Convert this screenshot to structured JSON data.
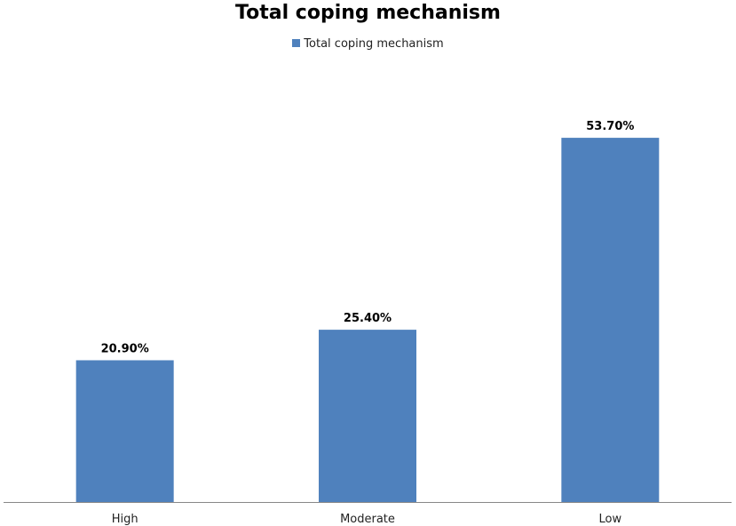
{
  "chart_data": {
    "type": "bar",
    "title": "Total coping mechanism",
    "legend": {
      "position": "top",
      "entries": [
        "Total coping mechanism"
      ]
    },
    "categories": [
      "High",
      "Moderate",
      "Low"
    ],
    "series": [
      {
        "name": "Total coping mechanism",
        "values": [
          20.9,
          25.4,
          53.7
        ],
        "labels": [
          "20.90%",
          "25.40%",
          "53.70%"
        ],
        "color": "#4f81bd"
      }
    ],
    "ylim": [
      0,
      60
    ],
    "grid": false
  }
}
